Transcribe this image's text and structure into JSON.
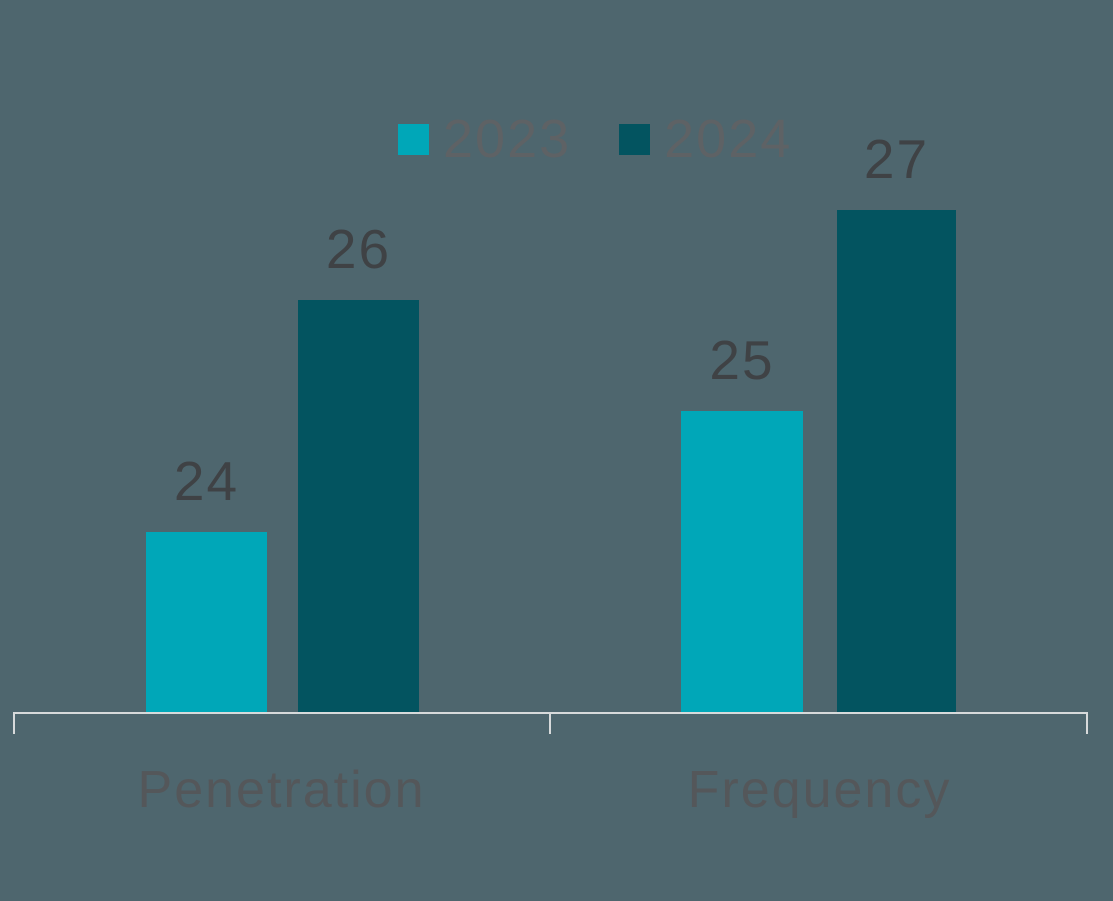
{
  "chart_data": {
    "type": "bar",
    "categories": [
      "Penetration",
      "Frequency"
    ],
    "series": [
      {
        "name": "2023",
        "color": "#00a7b8",
        "values": [
          24,
          25
        ]
      },
      {
        "name": "2024",
        "color": "#035460",
        "values": [
          26,
          27
        ]
      }
    ],
    "title": "",
    "xlabel": "",
    "ylabel": "",
    "legend_position": "top-center",
    "gridlines": false,
    "y_axis_visible": false,
    "data_labels_visible": true,
    "background_color": "#4e666e",
    "axis_line_color": "#d7dadb",
    "data_label_color": "#3f4245",
    "category_label_color": "#54575a",
    "legend_text_color": "#5e6265"
  }
}
